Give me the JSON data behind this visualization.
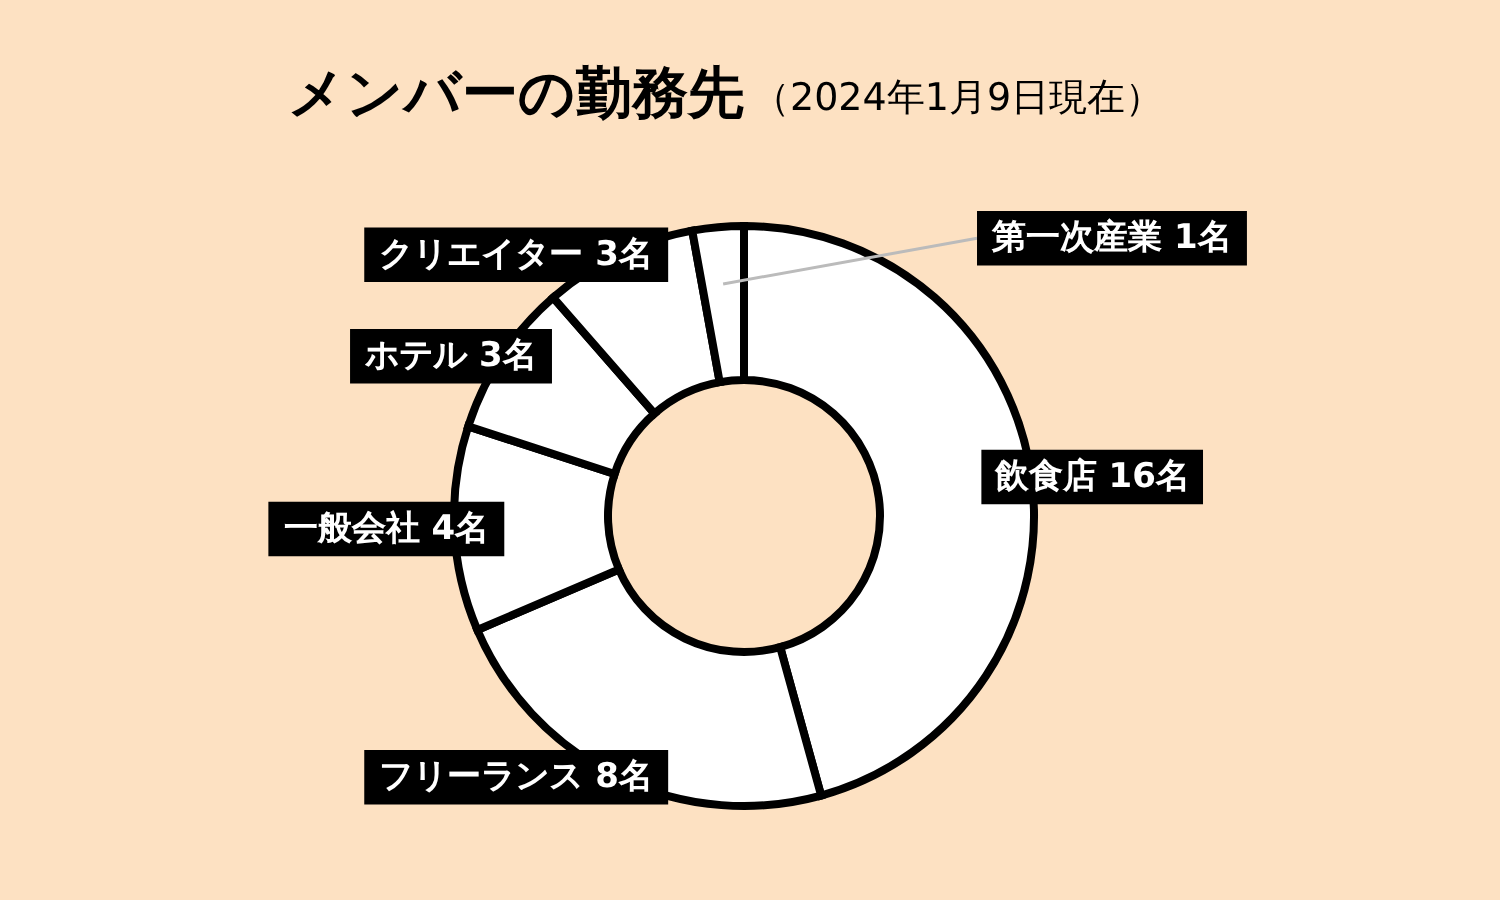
{
  "chart_data": {
    "type": "donut",
    "title": "メンバーの勤務先",
    "subtitle": "（2024年1月9日現在）",
    "categories": [
      "飲食店",
      "フリーランス",
      "一般会社",
      "ホテル",
      "クリエイター",
      "第一次産業"
    ],
    "values": [
      16,
      8,
      4,
      3,
      3,
      1
    ],
    "value_labels": [
      "16名",
      "8名",
      "4名",
      "3名",
      "3名",
      "1名"
    ],
    "colors": [
      "#ffffff",
      "#ffffff",
      "#ffffff",
      "#ffffff",
      "#ffffff",
      "#ffffff"
    ]
  }
}
